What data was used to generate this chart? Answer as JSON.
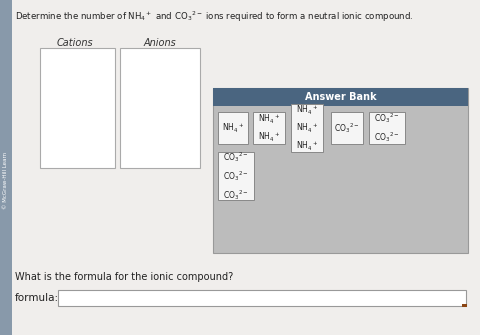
{
  "bg_color": "#f0eeec",
  "sidebar_color": "#8899aa",
  "sidebar_text": "McGraw-Hill Learn",
  "title": "Determine the number of NH",
  "title2": " and CO",
  "title3": " ions required to form a neutral ionic compound.",
  "answer_bank_header": "Answer Bank",
  "answer_bank_bg": "#bcbcbc",
  "answer_bank_header_color": "#4a6580",
  "cations_label": "Cations",
  "anions_label": "Anions",
  "formula_label": "formula:",
  "question_label": "What is the formula for the ionic compound?",
  "tile_bg": "#f5f5f5",
  "tile_border": "#888888"
}
